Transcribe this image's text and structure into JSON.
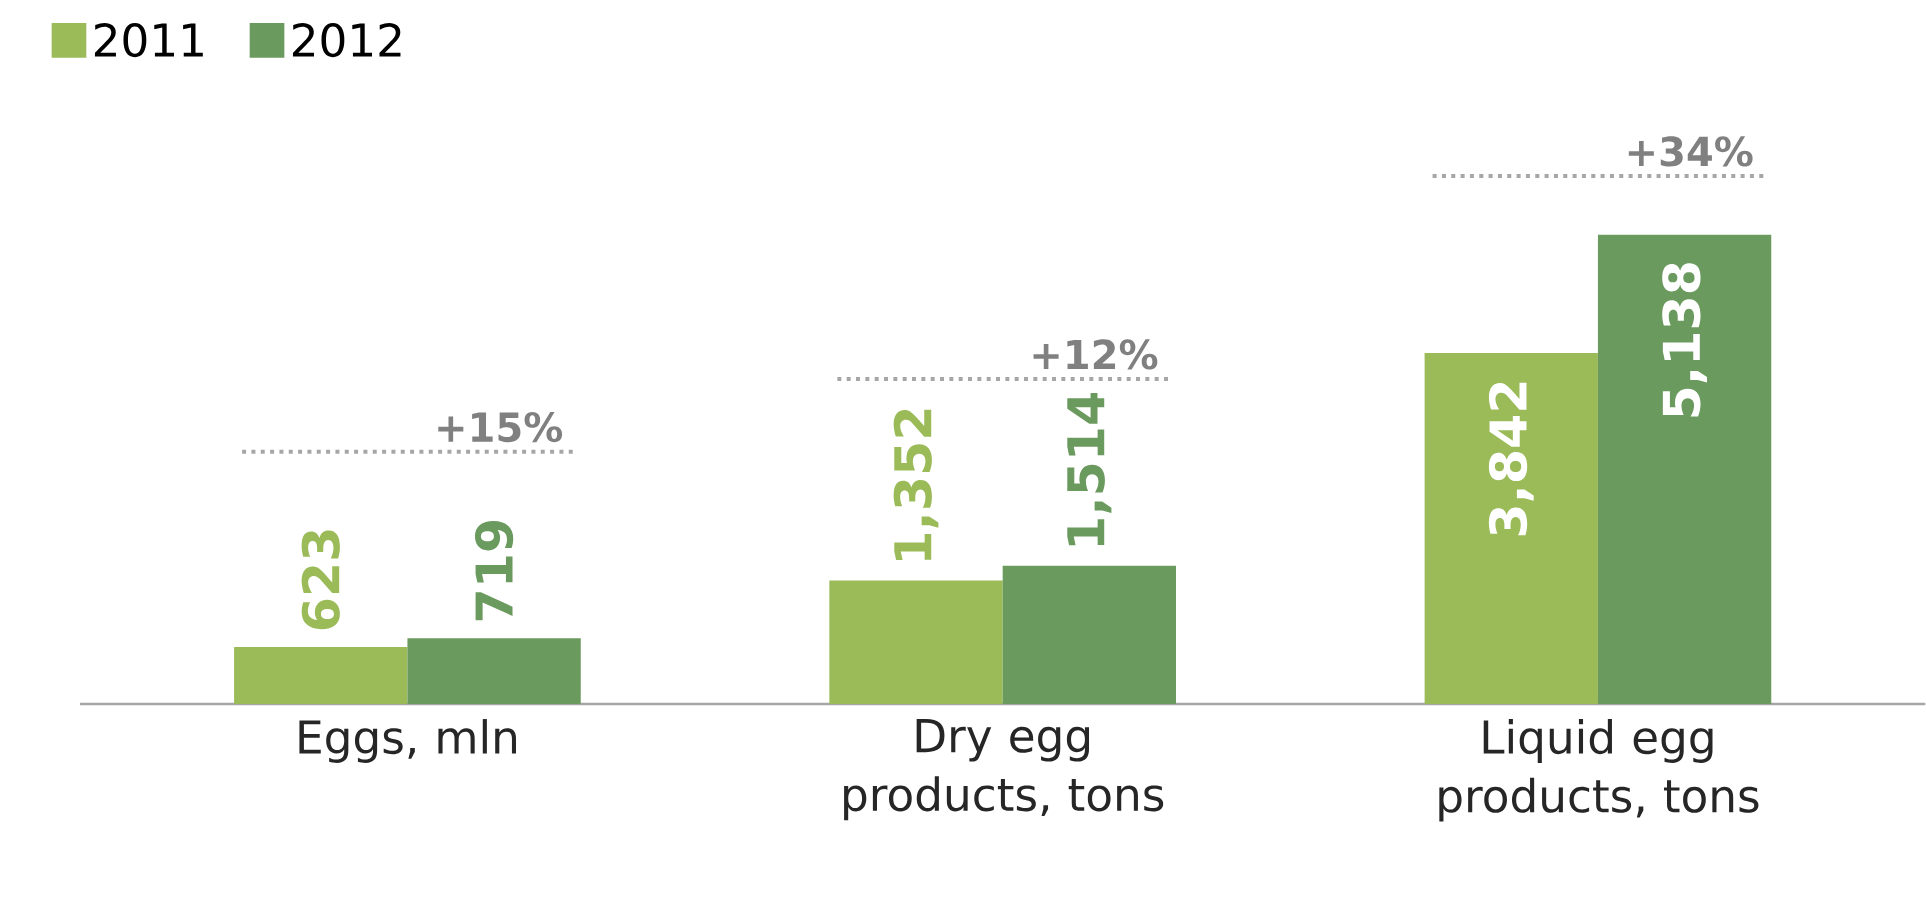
{
  "chart_data": {
    "type": "bar",
    "categories": [
      "Eggs, mln",
      "Dry egg products, tons",
      "Liquid egg products, tons"
    ],
    "series": [
      {
        "name": "2011",
        "color": "#9bbb59",
        "values": [
          623,
          1352,
          3842
        ],
        "value_labels": [
          "623",
          "1,352",
          "3,842"
        ]
      },
      {
        "name": "2012",
        "color": "#6b9a5e",
        "values": [
          719,
          1514,
          5138
        ],
        "value_labels": [
          "719",
          "1,514",
          "5,138"
        ]
      }
    ],
    "annotations": [
      "+15%",
      "+12%",
      "+34%"
    ],
    "legend": "top left"
  }
}
